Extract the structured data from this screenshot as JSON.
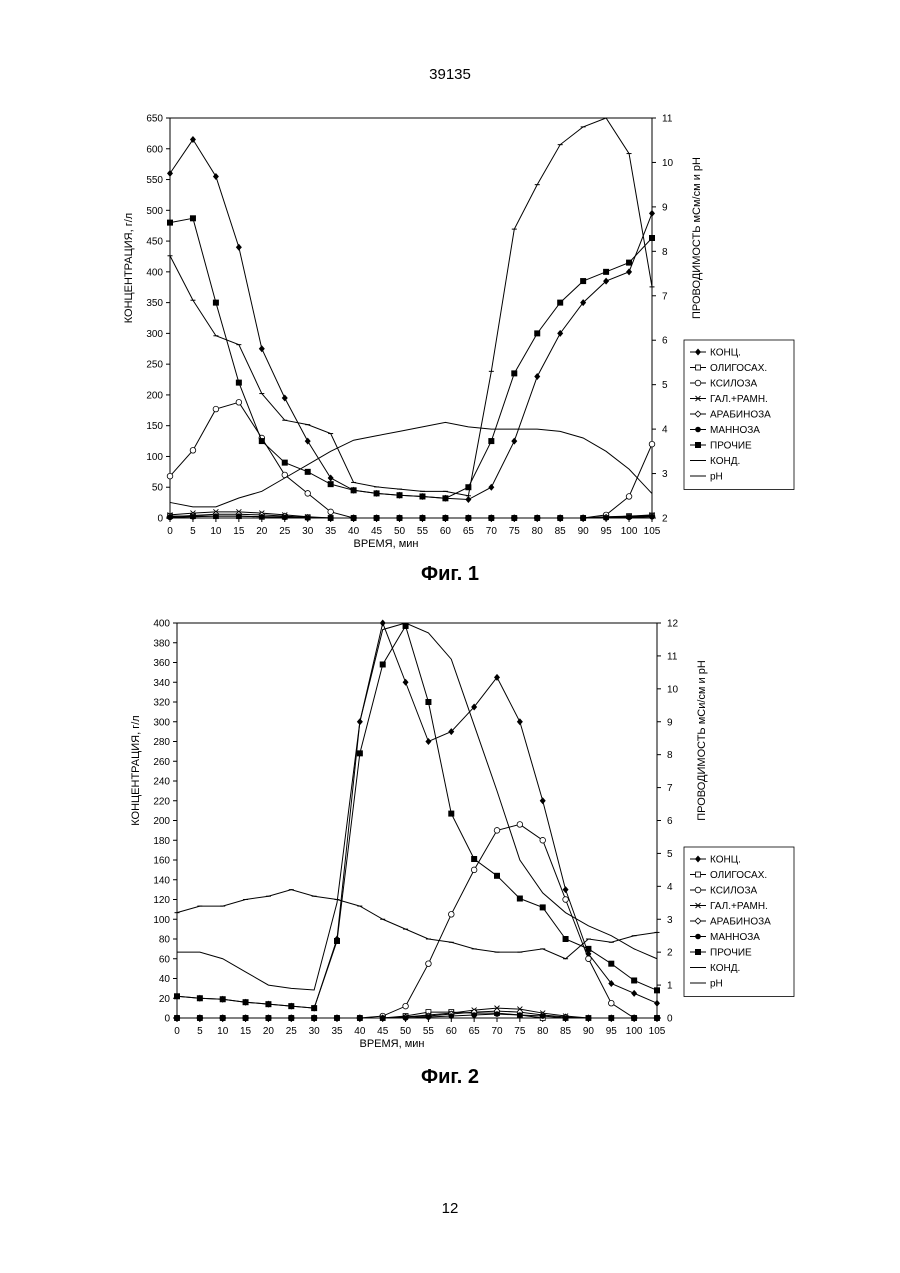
{
  "page": {
    "top_number": "39135",
    "bottom_number": "12"
  },
  "chart_data": [
    {
      "type": "line",
      "caption": "Фиг. 1",
      "xlabel": "ВРЕМЯ, мин",
      "ylabel_left": "КОНЦЕНТРАЦИЯ, г/л",
      "ylabel_right": "ПРОВОДИМОСТЬ мСм/см и pH",
      "xlim": [
        0,
        105
      ],
      "xticks": [
        0,
        5,
        10,
        15,
        20,
        25,
        30,
        35,
        40,
        45,
        50,
        55,
        60,
        65,
        70,
        75,
        80,
        85,
        90,
        95,
        100,
        105
      ],
      "ylim_left": [
        0,
        650
      ],
      "yticks_left": [
        0,
        50,
        100,
        150,
        200,
        250,
        300,
        350,
        400,
        450,
        500,
        550,
        600,
        650
      ],
      "ylim_right": [
        2,
        11
      ],
      "yticks_right": [
        2,
        3,
        4,
        5,
        6,
        7,
        8,
        9,
        10,
        11
      ],
      "legend_position": "right",
      "series": [
        {
          "name": "КОНЦ.",
          "axis": "left",
          "marker": "diamond",
          "x": [
            0,
            5,
            10,
            15,
            20,
            25,
            30,
            35,
            40,
            45,
            50,
            55,
            60,
            65,
            70,
            75,
            80,
            85,
            90,
            95,
            100,
            105
          ],
          "y": [
            560,
            615,
            555,
            440,
            275,
            195,
            125,
            65,
            45,
            40,
            37,
            35,
            32,
            30,
            50,
            125,
            230,
            300,
            350,
            385,
            400,
            495
          ]
        },
        {
          "name": "ОЛИГОСАХ.",
          "axis": "left",
          "marker": "square-open",
          "x": [
            0,
            5,
            10,
            15,
            20,
            25,
            30,
            35,
            40,
            45,
            50,
            55,
            60,
            65,
            70,
            75,
            80,
            85,
            90,
            95,
            100,
            105
          ],
          "y": [
            3,
            3,
            3,
            3,
            2,
            2,
            1,
            0,
            0,
            0,
            0,
            0,
            0,
            0,
            0,
            0,
            0,
            0,
            0,
            2,
            3,
            4
          ]
        },
        {
          "name": "КСИЛОЗА",
          "axis": "left",
          "marker": "circle-open",
          "x": [
            0,
            5,
            10,
            15,
            20,
            25,
            30,
            35,
            40,
            45,
            50,
            55,
            60,
            65,
            70,
            75,
            80,
            85,
            90,
            95,
            100,
            105
          ],
          "y": [
            68,
            110,
            177,
            188,
            130,
            70,
            40,
            10,
            0,
            0,
            0,
            0,
            0,
            0,
            0,
            0,
            0,
            0,
            0,
            5,
            35,
            120
          ]
        },
        {
          "name": "ГАЛ.+РАМН.",
          "axis": "left",
          "marker": "x",
          "x": [
            0,
            5,
            10,
            15,
            20,
            25,
            30,
            35,
            40,
            45,
            50,
            55,
            60,
            65,
            70,
            75,
            80,
            85,
            90,
            95,
            100,
            105
          ],
          "y": [
            5,
            8,
            10,
            10,
            8,
            5,
            2,
            0,
            0,
            0,
            0,
            0,
            0,
            0,
            0,
            0,
            0,
            0,
            0,
            1,
            3,
            5
          ]
        },
        {
          "name": "АРАБИНОЗА",
          "axis": "left",
          "marker": "diamond-open",
          "x": [
            0,
            5,
            10,
            15,
            20,
            25,
            30,
            35,
            40,
            45,
            50,
            55,
            60,
            65,
            70,
            75,
            80,
            85,
            90,
            95,
            100,
            105
          ],
          "y": [
            2,
            4,
            6,
            6,
            5,
            3,
            1,
            0,
            0,
            0,
            0,
            0,
            0,
            0,
            0,
            0,
            0,
            0,
            0,
            1,
            2,
            3
          ]
        },
        {
          "name": "МАННОЗА",
          "axis": "left",
          "marker": "circle",
          "x": [
            0,
            5,
            10,
            15,
            20,
            25,
            30,
            35,
            40,
            45,
            50,
            55,
            60,
            65,
            70,
            75,
            80,
            85,
            90,
            95,
            100,
            105
          ],
          "y": [
            1,
            2,
            3,
            3,
            2,
            1,
            0,
            0,
            0,
            0,
            0,
            0,
            0,
            0,
            0,
            0,
            0,
            0,
            0,
            0,
            1,
            2
          ]
        },
        {
          "name": "ПРОЧИЕ",
          "axis": "left",
          "marker": "square",
          "x": [
            0,
            5,
            10,
            15,
            20,
            25,
            30,
            35,
            40,
            45,
            50,
            55,
            60,
            65,
            70,
            75,
            80,
            85,
            90,
            95,
            100,
            105
          ],
          "y": [
            480,
            487,
            350,
            220,
            125,
            90,
            75,
            55,
            45,
            40,
            37,
            35,
            32,
            50,
            125,
            235,
            300,
            350,
            385,
            400,
            415,
            455
          ]
        },
        {
          "name": "КОНД.",
          "axis": "right",
          "marker": "dash",
          "x": [
            0,
            5,
            10,
            15,
            20,
            25,
            30,
            35,
            40,
            45,
            50,
            55,
            60,
            65,
            70,
            75,
            80,
            85,
            90,
            95,
            100,
            105
          ],
          "y": [
            7.9,
            6.9,
            6.1,
            5.9,
            4.8,
            4.2,
            4.1,
            3.9,
            2.8,
            2.7,
            2.65,
            2.6,
            2.6,
            2.5,
            5.3,
            8.5,
            9.5,
            10.4,
            10.8,
            11.0,
            10.2,
            7.2
          ]
        },
        {
          "name": "pH",
          "axis": "right",
          "marker": "none",
          "x": [
            0,
            5,
            10,
            15,
            20,
            25,
            30,
            35,
            40,
            45,
            50,
            55,
            60,
            65,
            70,
            75,
            80,
            85,
            90,
            95,
            100,
            105
          ],
          "y": [
            2.35,
            2.25,
            2.25,
            2.45,
            2.6,
            2.9,
            3.2,
            3.5,
            3.75,
            3.85,
            3.95,
            4.05,
            4.15,
            4.05,
            4.0,
            4.0,
            4.0,
            3.95,
            3.8,
            3.5,
            3.1,
            2.55
          ]
        }
      ]
    },
    {
      "type": "line",
      "caption": "Фиг. 2",
      "xlabel": "ВРЕМЯ, мин",
      "ylabel_left": "КОНЦЕНТРАЦИЯ, г/л",
      "ylabel_right": "ПРОВОДИМОСТЬ мСи/см и pH",
      "xlim": [
        0,
        105
      ],
      "xticks": [
        0,
        5,
        10,
        15,
        20,
        25,
        30,
        35,
        40,
        45,
        50,
        55,
        60,
        65,
        70,
        75,
        80,
        85,
        90,
        95,
        100,
        105
      ],
      "ylim_left": [
        0,
        400
      ],
      "yticks_left": [
        0,
        20,
        40,
        60,
        80,
        100,
        120,
        140,
        160,
        180,
        200,
        220,
        240,
        260,
        280,
        300,
        320,
        340,
        360,
        380,
        400
      ],
      "ylim_right": [
        0,
        12
      ],
      "yticks_right": [
        0,
        1,
        2,
        3,
        4,
        5,
        6,
        7,
        8,
        9,
        10,
        11,
        12
      ],
      "legend_position": "right",
      "series": [
        {
          "name": "КОНЦ.",
          "axis": "left",
          "marker": "diamond",
          "x": [
            0,
            5,
            10,
            15,
            20,
            25,
            30,
            35,
            40,
            45,
            50,
            55,
            60,
            65,
            70,
            75,
            80,
            85,
            90,
            95,
            100,
            105
          ],
          "y": [
            22,
            20,
            19,
            16,
            14,
            12,
            10,
            80,
            300,
            400,
            340,
            280,
            290,
            315,
            345,
            300,
            220,
            130,
            65,
            35,
            25,
            15
          ]
        },
        {
          "name": "ОЛИГОСАХ.",
          "axis": "left",
          "marker": "square-open",
          "x": [
            0,
            5,
            10,
            15,
            20,
            25,
            30,
            35,
            40,
            45,
            50,
            55,
            60,
            65,
            70,
            75,
            80,
            85,
            90,
            95,
            100,
            105
          ],
          "y": [
            0,
            0,
            0,
            0,
            0,
            0,
            0,
            0,
            0,
            0,
            2,
            6,
            6,
            5,
            5,
            3,
            0,
            -2,
            -2,
            -2,
            -2,
            -2
          ]
        },
        {
          "name": "КСИЛОЗА",
          "axis": "left",
          "marker": "circle-open",
          "x": [
            0,
            5,
            10,
            15,
            20,
            25,
            30,
            35,
            40,
            45,
            50,
            55,
            60,
            65,
            70,
            75,
            80,
            85,
            90,
            95,
            100,
            105
          ],
          "y": [
            0,
            0,
            0,
            0,
            0,
            0,
            0,
            0,
            0,
            2,
            12,
            55,
            105,
            150,
            190,
            196,
            180,
            120,
            60,
            15,
            0,
            -2
          ]
        },
        {
          "name": "ГАЛ.+РАМН.",
          "axis": "left",
          "marker": "x",
          "x": [
            0,
            5,
            10,
            15,
            20,
            25,
            30,
            35,
            40,
            45,
            50,
            55,
            60,
            65,
            70,
            75,
            80,
            85,
            90,
            95,
            100,
            105
          ],
          "y": [
            0,
            0,
            0,
            0,
            0,
            0,
            0,
            0,
            0,
            0,
            1,
            3,
            5,
            8,
            10,
            9,
            5,
            2,
            0,
            -1,
            -2,
            -2
          ]
        },
        {
          "name": "АРАБИНОЗА",
          "axis": "left",
          "marker": "diamond-open",
          "x": [
            0,
            5,
            10,
            15,
            20,
            25,
            30,
            35,
            40,
            45,
            50,
            55,
            60,
            65,
            70,
            75,
            80,
            85,
            90,
            95,
            100,
            105
          ],
          "y": [
            0,
            0,
            0,
            0,
            0,
            0,
            0,
            0,
            0,
            0,
            1,
            2,
            4,
            6,
            7,
            6,
            3,
            1,
            0,
            -1,
            -2,
            -2
          ]
        },
        {
          "name": "МАННОЗА",
          "axis": "left",
          "marker": "circle",
          "x": [
            0,
            5,
            10,
            15,
            20,
            25,
            30,
            35,
            40,
            45,
            50,
            55,
            60,
            65,
            70,
            75,
            80,
            85,
            90,
            95,
            100,
            105
          ],
          "y": [
            0,
            0,
            0,
            0,
            0,
            0,
            0,
            0,
            0,
            0,
            0,
            1,
            2,
            3,
            4,
            3,
            2,
            0,
            -1,
            -2,
            -2,
            -2
          ]
        },
        {
          "name": "ПРОЧИЕ",
          "axis": "left",
          "marker": "square",
          "x": [
            0,
            5,
            10,
            15,
            20,
            25,
            30,
            35,
            40,
            45,
            50,
            55,
            60,
            65,
            70,
            75,
            80,
            85,
            90,
            95,
            100,
            105
          ],
          "y": [
            22,
            20,
            19,
            16,
            14,
            12,
            10,
            78,
            268,
            358,
            397,
            320,
            207,
            161,
            144,
            121,
            112,
            80,
            70,
            55,
            38,
            28
          ]
        },
        {
          "name": "КОНД.",
          "axis": "right",
          "marker": "dash",
          "x": [
            0,
            5,
            10,
            15,
            20,
            25,
            30,
            35,
            40,
            45,
            50,
            55,
            60,
            65,
            70,
            75,
            80,
            85,
            90,
            95,
            100,
            105
          ],
          "y": [
            3.2,
            3.4,
            3.4,
            3.6,
            3.7,
            3.9,
            3.7,
            3.6,
            3.4,
            3.0,
            2.7,
            2.4,
            2.3,
            2.1,
            2.0,
            2.0,
            2.1,
            1.8,
            2.4,
            2.3,
            2.5,
            2.6
          ]
        },
        {
          "name": "pH",
          "axis": "right",
          "marker": "none",
          "x": [
            0,
            5,
            10,
            15,
            20,
            25,
            30,
            35,
            40,
            45,
            50,
            55,
            60,
            65,
            70,
            75,
            80,
            85,
            90,
            95,
            100,
            105
          ],
          "y": [
            2.0,
            2.0,
            1.8,
            1.4,
            1.0,
            0.9,
            0.85,
            3.5,
            9.0,
            11.8,
            12.0,
            11.7,
            10.9,
            8.9,
            6.9,
            4.8,
            3.8,
            3.2,
            2.8,
            2.5,
            2.1,
            1.8
          ]
        }
      ]
    }
  ]
}
